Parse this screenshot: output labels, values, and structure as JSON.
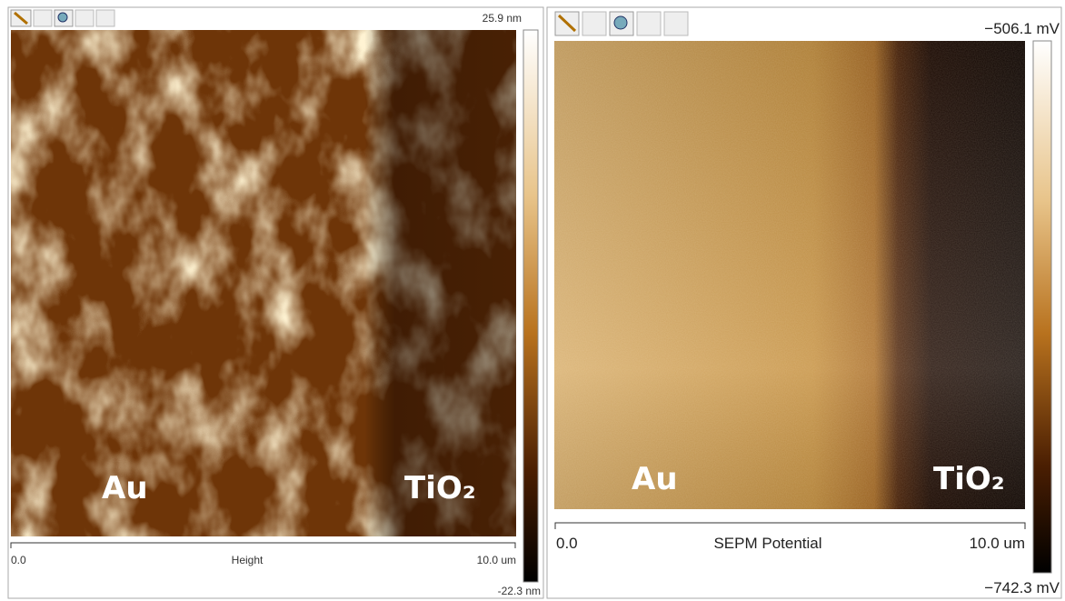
{
  "panels": [
    {
      "colorbar_max": "25.9 nm",
      "colorbar_min": "-22.3 nm",
      "axis_start": "0.0",
      "axis_title": "Height",
      "axis_end": "10.0 um",
      "labels": [
        "Au",
        "TiO₂"
      ]
    },
    {
      "colorbar_max": "−506.1  mV",
      "colorbar_min": "−742.3 mV",
      "axis_start": "0.0",
      "axis_title": "SEPM Potential",
      "axis_end": "10.0 um",
      "labels": [
        "Au",
        "TiO₂"
      ]
    }
  ]
}
